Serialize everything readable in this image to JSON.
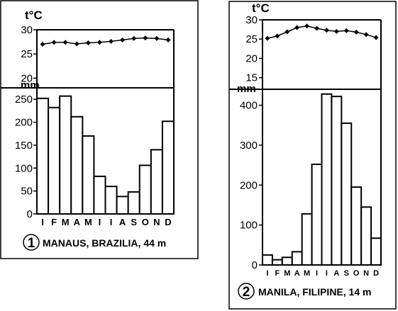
{
  "chart_data": [
    {
      "type": "bar",
      "station_number": "1",
      "title": "MANAUS, BRAZILIA, 44 m",
      "temp_unit": "t°C",
      "precip_unit": "mm",
      "temp_ticks": [
        "30",
        "25",
        "20"
      ],
      "temp_range": [
        18,
        30
      ],
      "precip_ticks": [
        "250",
        "200",
        "150",
        "100",
        "50",
        "0"
      ],
      "precip_range": [
        0,
        275
      ],
      "months": [
        "I",
        "F",
        "M",
        "A",
        "M",
        "I",
        "I",
        "A",
        "S",
        "O",
        "N",
        "D"
      ],
      "series": [
        {
          "name": "t°C",
          "kind": "line",
          "values": [
            27.0,
            27.4,
            27.4,
            27.1,
            27.3,
            27.4,
            27.6,
            27.9,
            28.2,
            28.3,
            28.2,
            27.9
          ]
        },
        {
          "name": "mm",
          "kind": "bar",
          "values": [
            252,
            232,
            257,
            212,
            170,
            82,
            60,
            38,
            48,
            106,
            140,
            202
          ]
        }
      ]
    },
    {
      "type": "bar",
      "station_number": "2",
      "title": "MANILA, FILIPINE, 14 m",
      "temp_unit": "t°C",
      "precip_unit": "mm",
      "temp_ticks": [
        "30",
        "25",
        "20",
        "15"
      ],
      "temp_range": [
        12,
        30
      ],
      "precip_ticks": [
        "400",
        "300",
        "200",
        "100",
        "0"
      ],
      "precip_range": [
        0,
        440
      ],
      "months": [
        "I",
        "F",
        "M",
        "A",
        "M",
        "I",
        "I",
        "A",
        "S",
        "O",
        "N",
        "D"
      ],
      "series": [
        {
          "name": "t°C",
          "kind": "line",
          "values": [
            25.2,
            25.8,
            26.9,
            28.0,
            28.4,
            27.8,
            27.3,
            27.0,
            27.2,
            26.8,
            26.2,
            25.4
          ]
        },
        {
          "name": "mm",
          "kind": "bar",
          "values": [
            25,
            13,
            19,
            33,
            128,
            252,
            428,
            422,
            355,
            195,
            145,
            67
          ]
        }
      ]
    }
  ]
}
